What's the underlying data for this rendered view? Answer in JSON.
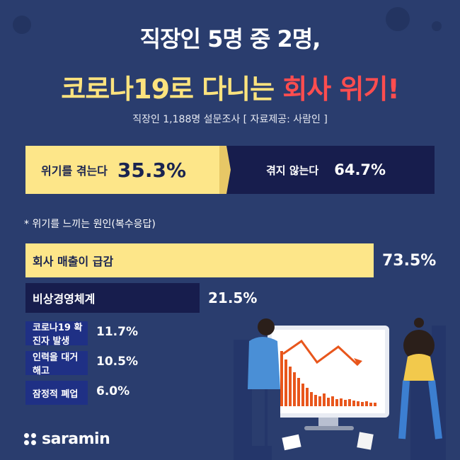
{
  "title": {
    "line1": "직장인 5명 중 2명,",
    "line2_part1": "코로나19로 다니는 ",
    "line2_part2": "회사 위기!"
  },
  "subtitle": "직장인 1,188명 설문조사 [ 자료제공: 사람인 ]",
  "split": {
    "yes_label": "위기를 겪는다",
    "yes_value": "35.3%",
    "no_label": "겪지 않는다",
    "no_value": "64.7%"
  },
  "reasons_title": "* 위기를 느끼는 원인(복수응답)",
  "brand": "saramin",
  "colors": {
    "background": "#2a3d6e",
    "yellow": "#fde689",
    "navy": "#171d4d",
    "bar_blue": "#1f3085",
    "red": "#ff4d4f"
  },
  "chart_data": [
    {
      "type": "bar",
      "title": "",
      "categories": [
        "위기를 겪는다",
        "겪지 않는다"
      ],
      "values": [
        35.3,
        64.7
      ],
      "value_labels": [
        "35.3%",
        "64.7%"
      ],
      "unit": "%"
    },
    {
      "type": "bar",
      "orientation": "horizontal",
      "title": "* 위기를 느끼는 원인(복수응답)",
      "categories": [
        "회사 매출이 급감",
        "비상경영체계",
        "코로나19 확진자 발생",
        "인력을 대거 해고",
        "잠정적 폐업"
      ],
      "values": [
        73.5,
        21.5,
        11.7,
        10.5,
        6.0
      ],
      "value_labels": [
        "73.5%",
        "21.5%",
        "11.7%",
        "10.5%",
        "6.0%"
      ],
      "unit": "%",
      "xlim": [
        0,
        100
      ]
    }
  ]
}
